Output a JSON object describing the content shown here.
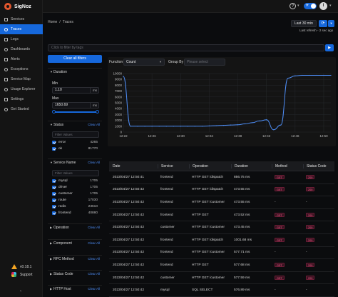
{
  "app": {
    "name": "SigNoz"
  },
  "sidebar": {
    "items": [
      {
        "label": "Services",
        "icon": "services-icon",
        "active": false
      },
      {
        "label": "Traces",
        "icon": "traces-icon",
        "active": true
      },
      {
        "label": "Logs",
        "icon": "logs-icon",
        "active": false
      },
      {
        "label": "Dashboards",
        "icon": "dashboards-icon",
        "active": false
      },
      {
        "label": "Alerts",
        "icon": "alerts-icon",
        "active": false
      },
      {
        "label": "Exceptions",
        "icon": "exceptions-icon",
        "active": false
      },
      {
        "label": "Service Map",
        "icon": "service-map-icon",
        "active": false
      },
      {
        "label": "Usage Explorer",
        "icon": "usage-explorer-icon",
        "active": false
      },
      {
        "label": "Settings",
        "icon": "settings-icon",
        "active": false
      },
      {
        "label": "Get Started",
        "icon": "get-started-icon",
        "active": false
      }
    ],
    "version": "v0.18.1",
    "support": "Support",
    "collapse": "‹"
  },
  "header": {
    "help": "?",
    "avatar_initial": "I"
  },
  "breadcrumb": {
    "home": "Home",
    "sep": "/",
    "current": "Traces"
  },
  "time": {
    "range": "Last 30 min",
    "last_refresh": "Last refresh - 2 sec ago"
  },
  "search": {
    "placeholder": "Click to filter by tags"
  },
  "filters": {
    "clear_all": "Clear all filters",
    "clear": "Clear All",
    "duration": {
      "title": "Duration",
      "min_label": "Min",
      "min_value": "1.10",
      "max_label": "Max",
      "max_value": "1650.69",
      "unit": "ms"
    },
    "status": {
      "title": "Status",
      "placeholder": "Filter Values",
      "options": [
        {
          "label": "error",
          "count": "4265"
        },
        {
          "label": "ok",
          "count": "81770"
        }
      ]
    },
    "service_name": {
      "title": "Service Name",
      "placeholder": "Filter Values",
      "options": [
        {
          "label": "mysql",
          "count": "1705"
        },
        {
          "label": "driver",
          "count": "1705"
        },
        {
          "label": "customer",
          "count": "1705"
        },
        {
          "label": "route",
          "count": "17030"
        },
        {
          "label": "redis",
          "count": "23610"
        },
        {
          "label": "frontend",
          "count": "40880"
        }
      ]
    },
    "collapsed": [
      "Operation",
      "Component",
      "RPC Method",
      "Status Code",
      "HTTP Host"
    ]
  },
  "chart_controls": {
    "function_label": "Function",
    "function_value": "Count",
    "group_by_label": "Group By",
    "group_by_placeholder": "Please select"
  },
  "chart_data": {
    "type": "line",
    "x": [
      "12:22",
      "12:23",
      "12:24",
      "12:25",
      "12:26",
      "12:27",
      "12:28",
      "12:29",
      "12:30",
      "12:31",
      "12:32",
      "12:33",
      "12:34",
      "12:35",
      "12:36",
      "12:37",
      "12:38",
      "12:39",
      "12:40",
      "12:41",
      "12:42",
      "12:43",
      "12:44",
      "12:45",
      "12:46",
      "12:47",
      "12:48",
      "12:49",
      "12:50",
      "12:51"
    ],
    "x_ticks": [
      "12:22",
      "12:26",
      "12:30",
      "12:34",
      "12:38",
      "12:42",
      "12:46",
      "12:50"
    ],
    "values": [
      9500,
      1000,
      1000,
      1000,
      1000,
      1000,
      1000,
      1000,
      1000,
      1000,
      1000,
      1000,
      1050,
      1100,
      1150,
      1200,
      1250,
      1400,
      1600,
      1900,
      2100,
      400,
      1200,
      9200,
      9600,
      9700,
      9700,
      9700,
      9700,
      9700
    ],
    "y_ticks": [
      0,
      1000,
      2000,
      3000,
      4000,
      5000,
      6000,
      7000,
      8000,
      9000,
      10000
    ],
    "ylim": [
      0,
      10000
    ],
    "color": "#4e8ef7",
    "grid": true
  },
  "table": {
    "columns": [
      "Date",
      "Service",
      "Operation",
      "Duration",
      "Method",
      "Status Code"
    ],
    "rows": [
      {
        "date": "2023/04/27 12:50:41",
        "service": "frontend",
        "operation": "HTTP GET /dispatch",
        "duration": "856.75 ms",
        "method": "GET",
        "status": "200"
      },
      {
        "date": "2023/04/27 12:50:42",
        "service": "frontend",
        "operation": "HTTP GET /dispatch",
        "duration": "473.55 ms",
        "method": "GET",
        "status": "200"
      },
      {
        "date": "2023/04/27 12:50:42",
        "service": "frontend",
        "operation": "HTTP GET /customer",
        "duration": "473.55 ms",
        "method": "-",
        "status": "-"
      },
      {
        "date": "2023/04/27 12:50:42",
        "service": "frontend",
        "operation": "HTTP GET",
        "duration": "473.52 ms",
        "method": "GET",
        "status": "200"
      },
      {
        "date": "2023/04/27 12:50:42",
        "service": "customer",
        "operation": "HTTP GET /customer",
        "duration": "473.45 ms",
        "method": "GET",
        "status": "200"
      },
      {
        "date": "2023/04/27 12:50:42",
        "service": "frontend",
        "operation": "HTTP GET /dispatch",
        "duration": "1001.68 ms",
        "method": "GET",
        "status": "200"
      },
      {
        "date": "2023/04/27 12:50:42",
        "service": "frontend",
        "operation": "HTTP GET /customer",
        "duration": "577.71 ms",
        "method": "-",
        "status": "-"
      },
      {
        "date": "2023/04/27 12:50:42",
        "service": "frontend",
        "operation": "HTTP GET",
        "duration": "577.68 ms",
        "method": "GET",
        "status": "200"
      },
      {
        "date": "2023/04/27 12:50:42",
        "service": "customer",
        "operation": "HTTP GET /customer",
        "duration": "577.59 ms",
        "method": "GET",
        "status": "200"
      },
      {
        "date": "2023/04/27 12:50:42",
        "service": "mysql",
        "operation": "SQL SELECT",
        "duration": "576.89 ms",
        "method": "-",
        "status": "-"
      }
    ]
  }
}
